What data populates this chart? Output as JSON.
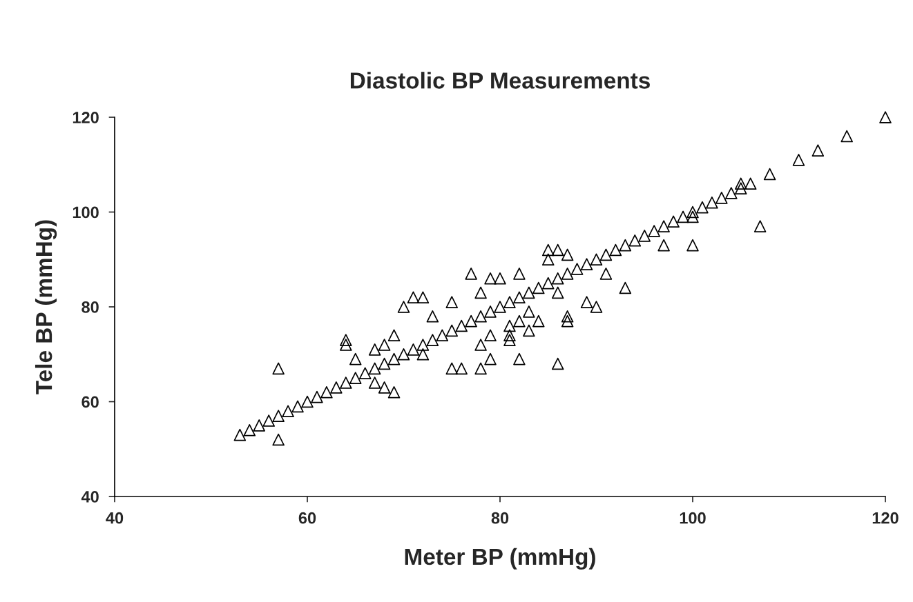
{
  "chart_data": {
    "type": "scatter",
    "title": "Diastolic BP Measurements",
    "xlabel": "Meter BP (mmHg)",
    "ylabel": "Tele BP (mmHg)",
    "xlim": [
      40,
      120
    ],
    "ylim": [
      40,
      120
    ],
    "xticks": [
      40,
      60,
      80,
      100,
      120
    ],
    "yticks": [
      40,
      60,
      80,
      100,
      120
    ],
    "marker": "triangle",
    "grid": false,
    "legend": false,
    "series": [
      {
        "color": "#000000",
        "x": [
          53,
          54,
          55,
          56,
          57,
          58,
          59,
          60,
          61,
          62,
          63,
          64,
          65,
          66,
          67,
          68,
          69,
          70,
          71,
          72,
          73,
          74,
          75,
          76,
          77,
          78,
          79,
          80,
          81,
          82,
          83,
          84,
          85,
          86,
          87,
          88,
          89,
          90,
          91,
          92,
          93,
          94,
          95,
          96,
          97,
          98,
          99,
          100,
          101,
          102,
          103,
          104,
          105,
          106,
          108,
          111,
          113,
          116,
          120,
          57,
          57,
          64,
          64,
          65,
          67,
          67,
          68,
          68,
          69,
          69,
          70,
          71,
          72,
          72,
          73,
          75,
          75,
          76,
          77,
          78,
          78,
          78,
          79,
          79,
          79,
          80,
          81,
          81,
          81,
          82,
          82,
          82,
          83,
          83,
          84,
          85,
          85,
          86,
          86,
          86,
          87,
          87,
          87,
          89,
          90,
          91,
          93,
          97,
          100,
          107,
          100,
          105
        ],
        "values": [
          53,
          54,
          55,
          56,
          57,
          58,
          59,
          60,
          61,
          62,
          63,
          64,
          65,
          66,
          67,
          68,
          69,
          70,
          71,
          72,
          73,
          74,
          75,
          76,
          77,
          78,
          79,
          80,
          81,
          82,
          83,
          84,
          85,
          86,
          87,
          88,
          89,
          90,
          91,
          92,
          93,
          94,
          95,
          96,
          97,
          98,
          99,
          100,
          101,
          102,
          103,
          104,
          105,
          106,
          108,
          111,
          113,
          116,
          120,
          67,
          52,
          73,
          72,
          69,
          64,
          71,
          63,
          72,
          62,
          74,
          80,
          82,
          82,
          70,
          78,
          81,
          67,
          67,
          87,
          67,
          72,
          83,
          86,
          74,
          69,
          86,
          73,
          74,
          76,
          87,
          69,
          77,
          75,
          79,
          77,
          92,
          90,
          92,
          68,
          83,
          91,
          77,
          78,
          81,
          80,
          87,
          84,
          93,
          93,
          97,
          99,
          106
        ]
      }
    ]
  }
}
